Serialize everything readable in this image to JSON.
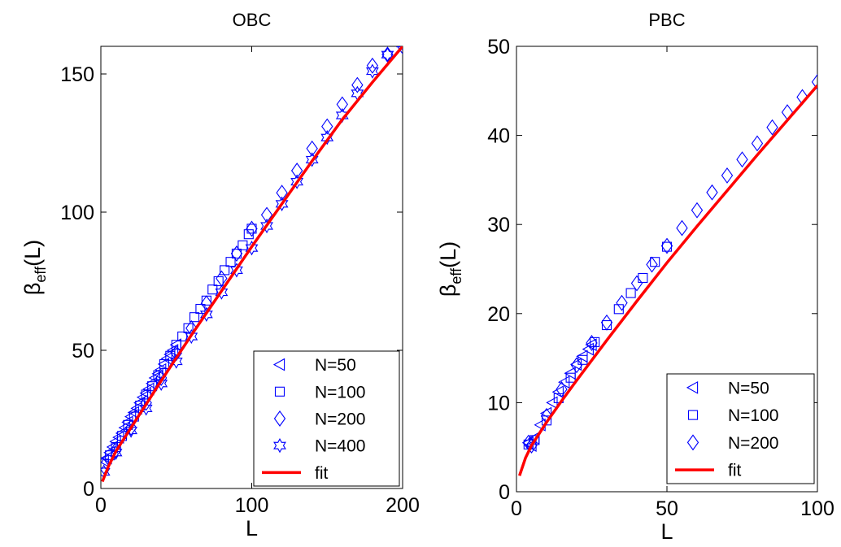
{
  "chart_data": [
    {
      "type": "scatter",
      "title": "OBC",
      "xlabel": "L",
      "ylabel_main": "β",
      "ylabel_sub": "eff",
      "ylabel_tail": "(L)",
      "xlim": [
        0,
        200
      ],
      "ylim": [
        0,
        160
      ],
      "xticks": [
        "0",
        "100",
        "200"
      ],
      "yticks": [
        "0",
        "50",
        "100",
        "150"
      ],
      "xtick_values": [
        0,
        100,
        200
      ],
      "ytick_values": [
        0,
        50,
        100,
        150
      ],
      "grid": false,
      "legend_position": "bottom-right",
      "colors": {
        "markers": "#0000ff",
        "fit": "#ff0000"
      },
      "series": [
        {
          "name": "N=50",
          "marker": "triangle-left",
          "x": [
            2,
            4,
            6,
            8,
            10,
            12,
            14,
            16,
            18,
            20,
            22,
            24,
            26,
            28,
            30,
            32,
            34,
            36,
            38,
            40,
            42,
            44,
            46,
            48,
            50
          ],
          "y": [
            10,
            11,
            13,
            15,
            17,
            18.5,
            20,
            22,
            24,
            26,
            27.5,
            29,
            31,
            33,
            34.5,
            36,
            38,
            40,
            41.5,
            43,
            45,
            47,
            48.5,
            50,
            52
          ]
        },
        {
          "name": "N=100",
          "marker": "square",
          "x": [
            2,
            6,
            10,
            14,
            18,
            22,
            26,
            30,
            34,
            38,
            42,
            46,
            50,
            54,
            58,
            62,
            66,
            70,
            74,
            78,
            82,
            86,
            90,
            94,
            98,
            100
          ],
          "y": [
            9,
            12,
            15,
            19,
            23,
            26,
            30,
            34,
            37,
            41,
            45,
            48,
            52,
            55,
            58,
            62,
            65,
            68,
            72,
            75,
            79,
            82,
            85,
            88,
            92,
            94
          ]
        },
        {
          "name": "N=200",
          "marker": "diamond",
          "x": [
            2,
            10,
            20,
            30,
            40,
            50,
            60,
            70,
            80,
            90,
            100,
            110,
            120,
            130,
            140,
            150,
            160,
            170,
            180,
            190,
            200
          ],
          "y": [
            8,
            14,
            22,
            31,
            40,
            49,
            58,
            67,
            76,
            85,
            94,
            99,
            107,
            115,
            123,
            131,
            139,
            146,
            153,
            157,
            160
          ]
        },
        {
          "name": "N=400",
          "marker": "hexagram",
          "x": [
            2,
            10,
            20,
            30,
            40,
            50,
            60,
            70,
            80,
            90,
            100,
            110,
            120,
            130,
            140,
            150,
            160,
            170,
            180,
            190,
            200
          ],
          "y": [
            6,
            13,
            21,
            29,
            38,
            46,
            55,
            63,
            71,
            79,
            87,
            95,
            103,
            111,
            119,
            127,
            135,
            143,
            151,
            157,
            161
          ]
        }
      ],
      "fit": {
        "name": "fit",
        "x": [
          1,
          5,
          10,
          20,
          30,
          40,
          60,
          80,
          100,
          120,
          140,
          160,
          180,
          200
        ],
        "y": [
          2.5,
          8,
          13.5,
          22,
          30.5,
          39,
          55.5,
          71.5,
          87.5,
          103,
          118.5,
          133.5,
          147,
          160
        ]
      }
    },
    {
      "type": "scatter",
      "title": "PBC",
      "xlabel": "L",
      "ylabel_main": "β",
      "ylabel_sub": "eff",
      "ylabel_tail": "(L)",
      "xlim": [
        0,
        100
      ],
      "ylim": [
        0,
        50
      ],
      "xticks": [
        "0",
        "50",
        "100"
      ],
      "yticks": [
        "0",
        "10",
        "20",
        "30",
        "40",
        "50"
      ],
      "xtick_values": [
        0,
        50,
        100
      ],
      "ytick_values": [
        0,
        10,
        20,
        30,
        40,
        50
      ],
      "grid": false,
      "legend_position": "bottom-right",
      "colors": {
        "markers": "#0000ff",
        "fit": "#ff0000"
      },
      "series": [
        {
          "name": "N=50",
          "marker": "triangle-left",
          "x": [
            4,
            5,
            6,
            8,
            10,
            12,
            14,
            16,
            18,
            20,
            22,
            24,
            25
          ],
          "y": [
            5.5,
            5.2,
            6,
            7.5,
            8.8,
            10,
            11.2,
            12.3,
            13.3,
            14.3,
            15.2,
            16,
            16.5
          ]
        },
        {
          "name": "N=100",
          "marker": "square",
          "x": [
            4,
            6,
            10,
            14,
            18,
            22,
            26,
            30,
            34,
            38,
            42,
            46,
            50
          ],
          "y": [
            5.3,
            5.8,
            8,
            10.5,
            12.8,
            14.8,
            16.8,
            18.7,
            20.5,
            22.3,
            24,
            25.8,
            27.5
          ]
        },
        {
          "name": "N=200",
          "marker": "diamond",
          "x": [
            4,
            5,
            10,
            15,
            20,
            25,
            30,
            35,
            40,
            45,
            50,
            55,
            60,
            65,
            70,
            75,
            80,
            85,
            90,
            95,
            100
          ],
          "y": [
            5.5,
            5.2,
            8.5,
            11.5,
            14.2,
            16.7,
            19,
            21.2,
            23.4,
            25.5,
            27.6,
            29.6,
            31.6,
            33.6,
            35.5,
            37.3,
            39.1,
            40.9,
            42.6,
            44.3,
            46
          ]
        }
      ],
      "fit": {
        "name": "fit",
        "x": [
          1,
          3,
          5,
          10,
          15,
          20,
          30,
          40,
          50,
          60,
          70,
          80,
          90,
          100
        ],
        "y": [
          1.8,
          3.8,
          5.2,
          7.8,
          10.2,
          12.5,
          17,
          21.4,
          25.7,
          29.8,
          33.8,
          37.8,
          41.7,
          45.6
        ]
      }
    }
  ]
}
